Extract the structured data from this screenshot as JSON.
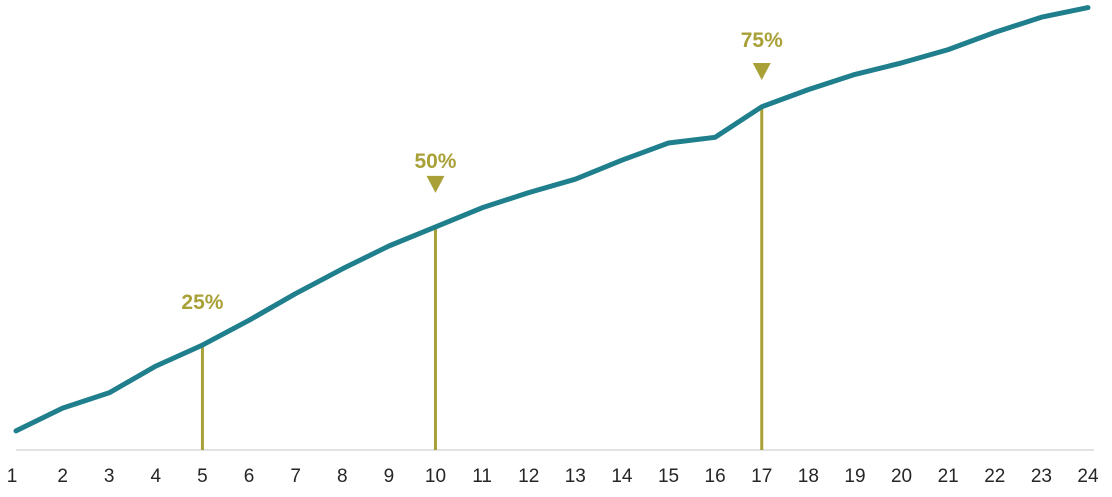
{
  "colors": {
    "line": "#1f7f8c",
    "marker": "#a9a138",
    "axis": "#d9d9d9",
    "text": "#262626"
  },
  "chart_data": {
    "type": "line",
    "title": "",
    "xlabel": "",
    "ylabel": "",
    "x": [
      1,
      2,
      3,
      4,
      5,
      6,
      7,
      8,
      9,
      10,
      11,
      12,
      13,
      14,
      15,
      16,
      17,
      18,
      19,
      20,
      21,
      22,
      23,
      24
    ],
    "series": [
      {
        "values": [
          5,
          11,
          15,
          22,
          27.5,
          34,
          41,
          47.5,
          53.5,
          58.5,
          63.5,
          67.5,
          71,
          76,
          80.5,
          82,
          90,
          94.5,
          98.5,
          101.5,
          105,
          109.5,
          113.5,
          116
        ]
      }
    ],
    "ylim": [
      0,
      118
    ],
    "grid": false,
    "markers": [
      {
        "x": 5,
        "label": "25%"
      },
      {
        "x": 10,
        "label": "50%"
      },
      {
        "x": 17,
        "label": "75%"
      }
    ]
  }
}
